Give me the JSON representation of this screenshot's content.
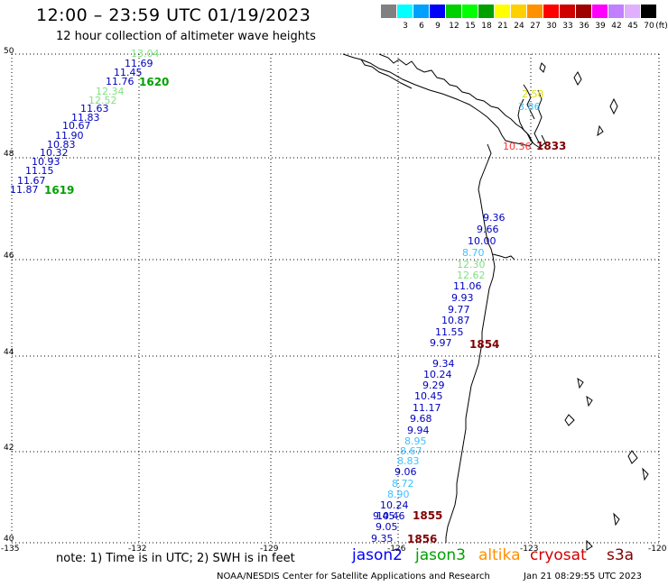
{
  "title": "12:00 – 23:59 UTC 01/19/2023",
  "subtitle": "12 hour collection of altimeter wave heights",
  "color_scale": {
    "unit_label": "(ft)",
    "bins": [
      {
        "label": "",
        "color": "#808080"
      },
      {
        "label": "3",
        "color": "#00ffff"
      },
      {
        "label": "6",
        "color": "#00a0ff"
      },
      {
        "label": "9",
        "color": "#0000ff"
      },
      {
        "label": "12",
        "color": "#00d000"
      },
      {
        "label": "15",
        "color": "#00ff00"
      },
      {
        "label": "18",
        "color": "#00a000"
      },
      {
        "label": "21",
        "color": "#ffff00"
      },
      {
        "label": "24",
        "color": "#ffd000"
      },
      {
        "label": "27",
        "color": "#ff9000"
      },
      {
        "label": "30",
        "color": "#ff0000"
      },
      {
        "label": "33",
        "color": "#d00000"
      },
      {
        "label": "36",
        "color": "#a00000"
      },
      {
        "label": "39",
        "color": "#ff00ff"
      },
      {
        "label": "42",
        "color": "#c080ff"
      },
      {
        "label": "45",
        "color": "#e0b0ff"
      },
      {
        "label": "70",
        "color": "#000000"
      }
    ]
  },
  "axes": {
    "lat_labels": [
      "50",
      "48",
      "46",
      "44",
      "42",
      "40"
    ],
    "lon_labels": [
      "-135",
      "-132",
      "-129",
      "-126",
      "-123",
      "-120"
    ]
  },
  "wave_points": [
    {
      "value": "13.04",
      "color": "#80e080"
    },
    {
      "value": "11.69",
      "color": "#0000c0"
    },
    {
      "value": "11.45",
      "color": "#0000c0"
    },
    {
      "value": "11.76",
      "color": "#0000c0"
    },
    {
      "value": "12.34",
      "color": "#80e080"
    },
    {
      "value": "12.52",
      "color": "#80e080"
    },
    {
      "value": "11.63",
      "color": "#0000c0"
    },
    {
      "value": "11.83",
      "color": "#0000c0"
    },
    {
      "value": "10.67",
      "color": "#0000c0"
    },
    {
      "value": "11.90",
      "color": "#0000c0"
    },
    {
      "value": "10.83",
      "color": "#0000c0"
    },
    {
      "value": "10.32",
      "color": "#0000c0"
    },
    {
      "value": "10.93",
      "color": "#0000c0"
    },
    {
      "value": "11.15",
      "color": "#0000c0"
    },
    {
      "value": "11.67",
      "color": "#0000c0"
    },
    {
      "value": "11.87",
      "color": "#0000c0"
    },
    {
      "value": "2.58",
      "color": "#e0e000"
    },
    {
      "value": "3.86",
      "color": "#40c0ff"
    },
    {
      "value": "10.36",
      "color": "#ff3030"
    },
    {
      "value": "9.36",
      "color": "#0000c0"
    },
    {
      "value": "9.66",
      "color": "#0000c0"
    },
    {
      "value": "10.00",
      "color": "#0000c0"
    },
    {
      "value": "8.70",
      "color": "#40c0ff"
    },
    {
      "value": "12.30",
      "color": "#80e080"
    },
    {
      "value": "12.62",
      "color": "#80e080"
    },
    {
      "value": "11.06",
      "color": "#0000c0"
    },
    {
      "value": "9.93",
      "color": "#0000c0"
    },
    {
      "value": "9.77",
      "color": "#0000c0"
    },
    {
      "value": "10.87",
      "color": "#0000c0"
    },
    {
      "value": "11.55",
      "color": "#0000c0"
    },
    {
      "value": "9.97",
      "color": "#0000c0"
    },
    {
      "value": "9.34",
      "color": "#0000c0"
    },
    {
      "value": "10.24",
      "color": "#0000c0"
    },
    {
      "value": "9.29",
      "color": "#0000c0"
    },
    {
      "value": "10.45",
      "color": "#0000c0"
    },
    {
      "value": "11.17",
      "color": "#0000c0"
    },
    {
      "value": "9.68",
      "color": "#0000c0"
    },
    {
      "value": "9.94",
      "color": "#0000c0"
    },
    {
      "value": "8.95",
      "color": "#40c0ff"
    },
    {
      "value": "8.67",
      "color": "#40c0ff"
    },
    {
      "value": "8.83",
      "color": "#40c0ff"
    },
    {
      "value": "9.06",
      "color": "#0000c0"
    },
    {
      "value": "8.72",
      "color": "#40c0ff"
    },
    {
      "value": "8.90",
      "color": "#40c0ff"
    },
    {
      "value": "10.24",
      "color": "#0000c0"
    },
    {
      "value": "10.46",
      "color": "#0000c0"
    },
    {
      "value": "9.45",
      "color": "#0000c0"
    },
    {
      "value": "9.05",
      "color": "#0000c0"
    },
    {
      "value": "9.35",
      "color": "#0000c0"
    }
  ],
  "time_labels": [
    {
      "value": "1620",
      "color": "#00a000"
    },
    {
      "value": "1619",
      "color": "#00a000"
    },
    {
      "value": "1833",
      "color": "#800000"
    },
    {
      "value": "1854",
      "color": "#800000"
    },
    {
      "value": "1855",
      "color": "#800000"
    },
    {
      "value": "1856",
      "color": "#800000"
    }
  ],
  "footer": {
    "note": "note:  1) Time is in UTC;  2) SWH is in feet",
    "satellites": [
      {
        "name": "jason2",
        "color": "#0000ff"
      },
      {
        "name": "jason3",
        "color": "#00a000"
      },
      {
        "name": "altika",
        "color": "#ff9000"
      },
      {
        "name": "cryosat",
        "color": "#d00000"
      },
      {
        "name": "s3a",
        "color": "#800000"
      }
    ],
    "credit": "NOAA/NESDIS Center for Satellite Applications and Research",
    "timestamp": "Jan 21 08:29:55 UTC 2023"
  }
}
